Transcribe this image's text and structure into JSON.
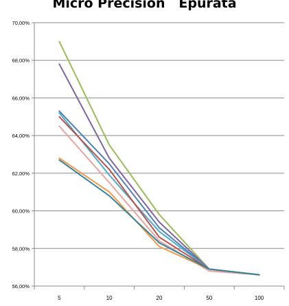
{
  "chart_data": {
    "type": "line",
    "title": "Micro Precision   Epurata",
    "xlabel": "",
    "ylabel": "",
    "categories": [
      "5",
      "10",
      "20",
      "50",
      "100"
    ],
    "y_tick_labels": [
      "56,00%",
      "58,00%",
      "60,00%",
      "62,00%",
      "64,00%",
      "66,00%",
      "68,00%",
      "70,00%"
    ],
    "ylim": [
      56,
      70
    ],
    "y_unit": "%",
    "grid": "horizontal",
    "legend": "none",
    "series": [
      {
        "color": "#9BBB59",
        "values": [
          69.0,
          63.5,
          59.8,
          56.9,
          56.6
        ]
      },
      {
        "color": "#8064A2",
        "values": [
          67.8,
          62.8,
          59.4,
          56.9,
          56.6
        ]
      },
      {
        "color": "#4F81BD",
        "values": [
          65.3,
          62.5,
          59.1,
          56.9,
          56.6
        ]
      },
      {
        "color": "#4BACC6",
        "values": [
          65.2,
          61.9,
          58.9,
          56.9,
          56.6
        ]
      },
      {
        "color": "#C0504D",
        "values": [
          65.0,
          62.2,
          58.6,
          56.9,
          56.6
        ]
      },
      {
        "color": "#E6A3A0",
        "values": [
          64.5,
          61.5,
          58.4,
          56.8,
          56.6
        ]
      },
      {
        "color": "#F79646",
        "values": [
          62.8,
          61.0,
          58.1,
          56.9,
          56.6
        ]
      },
      {
        "color": "#31859C",
        "values": [
          62.7,
          60.8,
          58.3,
          56.9,
          56.6
        ]
      }
    ]
  }
}
